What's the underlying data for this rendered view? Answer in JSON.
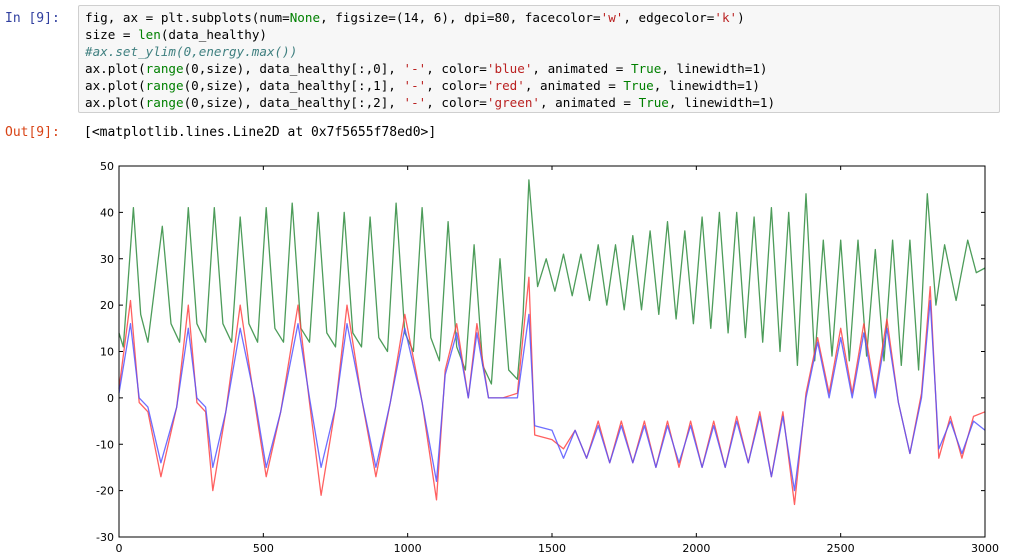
{
  "cell": {
    "in_prompt": "In [9]:",
    "out_prompt": "Out[9]:",
    "output": "[<matplotlib.lines.Line2D at 0x7f5655f78ed0>]"
  },
  "code_lines": [
    "fig, ax = plt.subplots(num=None, figsize=(14, 6), dpi=80, facecolor='w', edgecolor='k')",
    "size = len(data_healthy)",
    "#ax.set_ylim(0,energy.max())",
    "ax.plot(range(0,size), data_healthy[:,0], '-', color='blue', animated = True, linewidth=1)",
    "ax.plot(range(0,size), data_healthy[:,1], '-', color='red', animated = True, linewidth=1)",
    "ax.plot(range(0,size), data_healthy[:,2], '-', color='green', animated = True, linewidth=1)"
  ],
  "colors": {
    "blue": "#5555ff",
    "red": "#ff4444",
    "green": "#2e8b3d"
  },
  "chart_data": {
    "type": "line",
    "xlim": [
      0,
      3000
    ],
    "ylim": [
      -30,
      50
    ],
    "xticks": [
      0,
      500,
      1000,
      1500,
      2000,
      2500,
      3000
    ],
    "yticks": [
      -30,
      -20,
      -10,
      0,
      10,
      20,
      30,
      40,
      50
    ],
    "grid": false,
    "series": [
      {
        "name": "blue",
        "color": "blue",
        "peaks_x": [
          40,
          145,
          240,
          325,
          420,
          510,
          620,
          700,
          790,
          890,
          990,
          1100,
          1170,
          1240,
          1420
        ],
        "peaks_y": [
          16,
          -14,
          15,
          -15,
          15,
          -15,
          16,
          -15,
          16,
          -15,
          15,
          -18,
          14,
          14,
          18
        ],
        "x": [
          0,
          40,
          70,
          100,
          145,
          200,
          240,
          270,
          300,
          325,
          370,
          420,
          470,
          510,
          560,
          620,
          660,
          700,
          750,
          790,
          840,
          890,
          940,
          990,
          1050,
          1100,
          1130,
          1170,
          1210,
          1240,
          1280,
          1330,
          1380,
          1420,
          1440,
          1500,
          1540,
          1580,
          1620,
          1660,
          1700,
          1740,
          1780,
          1820,
          1860,
          1900,
          1940,
          1980,
          2020,
          2060,
          2100,
          2140,
          2180,
          2220,
          2260,
          2300,
          2340,
          2380,
          2420,
          2460,
          2500,
          2540,
          2580,
          2620,
          2660,
          2700,
          2740,
          2780,
          2810,
          2840,
          2880,
          2920,
          2960,
          3000
        ],
        "y": [
          1,
          16,
          0,
          -2,
          -14,
          -2,
          15,
          0,
          -2,
          -15,
          -3,
          15,
          0,
          -15,
          -3,
          16,
          0,
          -15,
          -2,
          16,
          0,
          -15,
          -1,
          15,
          -1,
          -18,
          5,
          14,
          0,
          14,
          0,
          0,
          0,
          18,
          -6,
          -7,
          -13,
          -7,
          -13,
          -6,
          -14,
          -6,
          -14,
          -6,
          -15,
          -6,
          -14,
          -6,
          -15,
          -6,
          -15,
          -5,
          -14,
          -4,
          -17,
          -4,
          -20,
          0,
          12,
          0,
          13,
          0,
          14,
          0,
          15,
          -1,
          -12,
          0,
          21,
          -11,
          -5,
          -12,
          -5,
          -7
        ]
      },
      {
        "name": "red",
        "color": "red",
        "x": [
          0,
          40,
          70,
          100,
          145,
          200,
          240,
          270,
          300,
          325,
          370,
          420,
          470,
          510,
          560,
          620,
          660,
          700,
          750,
          790,
          840,
          890,
          940,
          990,
          1050,
          1100,
          1130,
          1170,
          1210,
          1240,
          1280,
          1330,
          1380,
          1420,
          1440,
          1500,
          1540,
          1580,
          1620,
          1660,
          1700,
          1740,
          1780,
          1820,
          1860,
          1900,
          1940,
          1980,
          2020,
          2060,
          2100,
          2140,
          2180,
          2220,
          2260,
          2300,
          2340,
          2380,
          2420,
          2460,
          2500,
          2540,
          2580,
          2620,
          2660,
          2700,
          2740,
          2780,
          2810,
          2840,
          2880,
          2920,
          2960,
          3000
        ],
        "y": [
          2,
          21,
          -1,
          -3,
          -17,
          -2,
          20,
          -1,
          -3,
          -20,
          -3,
          20,
          -1,
          -17,
          -3,
          20,
          -1,
          -21,
          -2,
          20,
          0,
          -17,
          -1,
          18,
          -1,
          -22,
          6,
          16,
          0,
          16,
          0,
          0,
          1,
          26,
          -8,
          -9,
          -11,
          -7,
          -13,
          -5,
          -14,
          -5,
          -14,
          -5,
          -15,
          -5,
          -15,
          -5,
          -15,
          -5,
          -15,
          -4,
          -14,
          -3,
          -17,
          -3,
          -23,
          1,
          13,
          1,
          15,
          1,
          16,
          1,
          17,
          -1,
          -12,
          1,
          24,
          -13,
          -4,
          -13,
          -4,
          -3
        ]
      },
      {
        "name": "green",
        "color": "green",
        "x": [
          0,
          15,
          30,
          50,
          75,
          100,
          150,
          180,
          210,
          240,
          270,
          300,
          330,
          360,
          390,
          420,
          450,
          480,
          510,
          540,
          570,
          600,
          630,
          660,
          690,
          720,
          750,
          780,
          810,
          840,
          870,
          900,
          930,
          960,
          990,
          1020,
          1050,
          1080,
          1110,
          1140,
          1170,
          1200,
          1230,
          1260,
          1290,
          1320,
          1350,
          1380,
          1400,
          1420,
          1450,
          1480,
          1510,
          1540,
          1570,
          1600,
          1630,
          1660,
          1690,
          1720,
          1750,
          1780,
          1810,
          1840,
          1870,
          1900,
          1930,
          1960,
          1990,
          2020,
          2050,
          2080,
          2110,
          2140,
          2170,
          2200,
          2230,
          2260,
          2290,
          2320,
          2350,
          2380,
          2410,
          2440,
          2470,
          2500,
          2530,
          2560,
          2590,
          2620,
          2650,
          2680,
          2710,
          2740,
          2770,
          2800,
          2830,
          2860,
          2900,
          2940,
          2970,
          3000
        ],
        "y": [
          14,
          11,
          24,
          41,
          18,
          12,
          37,
          16,
          12,
          41,
          16,
          12,
          41,
          16,
          12,
          39,
          16,
          12,
          41,
          15,
          12,
          42,
          15,
          12,
          40,
          14,
          11,
          40,
          14,
          11,
          39,
          13,
          10,
          42,
          14,
          10,
          41,
          13,
          8,
          38,
          11,
          6,
          33,
          7,
          3,
          30,
          6,
          4,
          18,
          47,
          24,
          30,
          23,
          31,
          22,
          31,
          21,
          33,
          20,
          33,
          19,
          35,
          19,
          36,
          18,
          38,
          17,
          36,
          16,
          39,
          15,
          40,
          14,
          40,
          13,
          39,
          12,
          41,
          10,
          40,
          7,
          44,
          8,
          34,
          9,
          34,
          8,
          34,
          9,
          32,
          8,
          34,
          7,
          34,
          6,
          44,
          20,
          33,
          21,
          34,
          27,
          28
        ]
      }
    ]
  }
}
